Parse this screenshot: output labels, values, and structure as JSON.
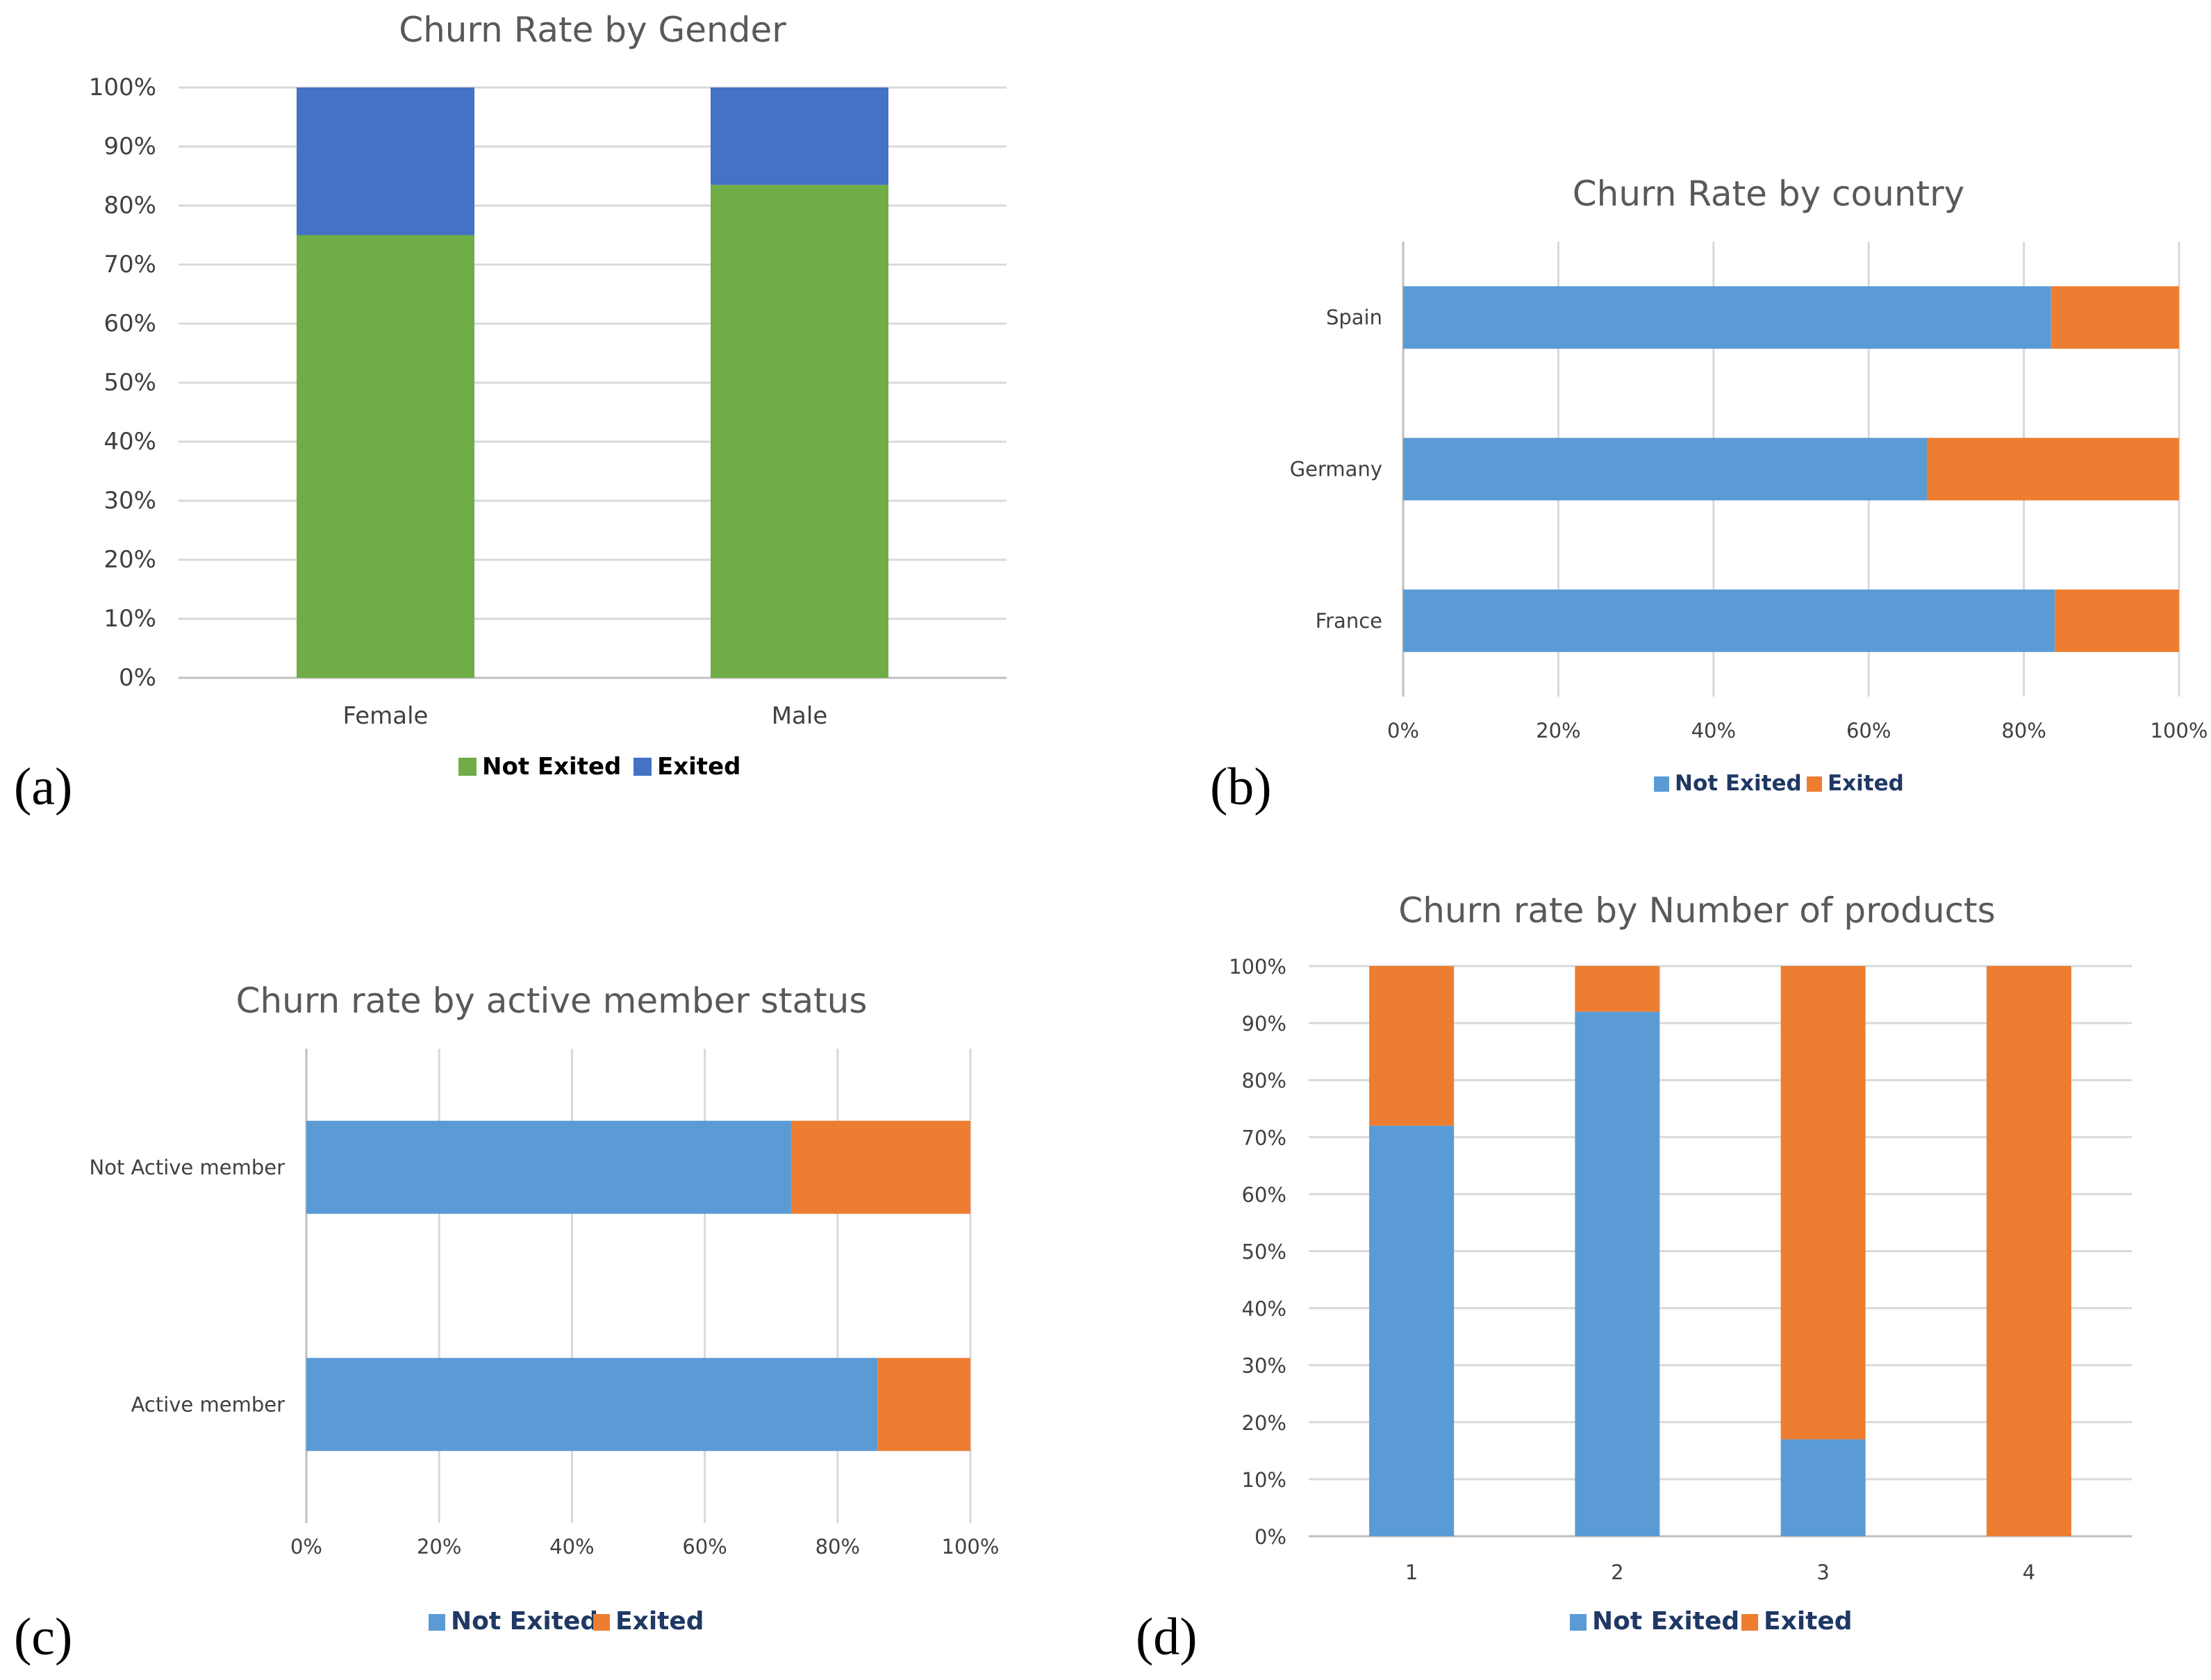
{
  "colors": {
    "green": "#70ad47",
    "dark_blue": "#4472c4",
    "light_blue": "#5b9bd5",
    "orange": "#ed7d31"
  },
  "chart_data": [
    {
      "id": "a",
      "panel_label": "(a)",
      "type": "bar",
      "orientation": "vertical",
      "stacked": "percent",
      "title": "Churn Rate by Gender",
      "categories": [
        "Female",
        "Male"
      ],
      "series": [
        {
          "name": "Not Exited",
          "values": [
            75,
            83.5
          ],
          "color": "#70ad47"
        },
        {
          "name": "Exited",
          "values": [
            25,
            16.5
          ],
          "color": "#4472c4"
        }
      ],
      "value_ticks": [
        "0%",
        "10%",
        "20%",
        "30%",
        "40%",
        "50%",
        "60%",
        "70%",
        "80%",
        "90%",
        "100%"
      ],
      "ylim": [
        0,
        100
      ],
      "legend_position": "bottom"
    },
    {
      "id": "b",
      "panel_label": "(b)",
      "type": "bar",
      "orientation": "horizontal",
      "stacked": "percent",
      "title": "Churn Rate by country",
      "categories": [
        "France",
        "Germany",
        "Spain"
      ],
      "series": [
        {
          "name": "Not Exited",
          "values": [
            84,
            67.5,
            83.5
          ],
          "color": "#5b9bd5"
        },
        {
          "name": "Exited",
          "values": [
            16,
            32.5,
            16.5
          ],
          "color": "#ed7d31"
        }
      ],
      "value_ticks": [
        "0%",
        "20%",
        "40%",
        "60%",
        "80%",
        "100%"
      ],
      "xlim": [
        0,
        100
      ],
      "legend_position": "bottom"
    },
    {
      "id": "c",
      "panel_label": "(c)",
      "type": "bar",
      "orientation": "horizontal",
      "stacked": "percent",
      "title": "Churn rate by active member status",
      "categories": [
        "Active member",
        "Not Active member"
      ],
      "series": [
        {
          "name": "Not Exited",
          "values": [
            86,
            73
          ],
          "color": "#5b9bd5"
        },
        {
          "name": "Exited",
          "values": [
            14,
            27
          ],
          "color": "#ed7d31"
        }
      ],
      "value_ticks": [
        "0%",
        "20%",
        "40%",
        "60%",
        "80%",
        "100%"
      ],
      "xlim": [
        0,
        100
      ],
      "legend_position": "bottom"
    },
    {
      "id": "d",
      "panel_label": "(d)",
      "type": "bar",
      "orientation": "vertical",
      "stacked": "percent",
      "title": "Churn rate by Number of products",
      "categories": [
        "1",
        "2",
        "3",
        "4"
      ],
      "series": [
        {
          "name": "Not Exited",
          "values": [
            72,
            92,
            17,
            0
          ],
          "color": "#5b9bd5"
        },
        {
          "name": "Exited",
          "values": [
            28,
            8,
            83,
            100
          ],
          "color": "#ed7d31"
        }
      ],
      "value_ticks": [
        "0%",
        "10%",
        "20%",
        "30%",
        "40%",
        "50%",
        "60%",
        "70%",
        "80%",
        "90%",
        "100%"
      ],
      "ylim": [
        0,
        100
      ],
      "legend_position": "bottom"
    }
  ]
}
